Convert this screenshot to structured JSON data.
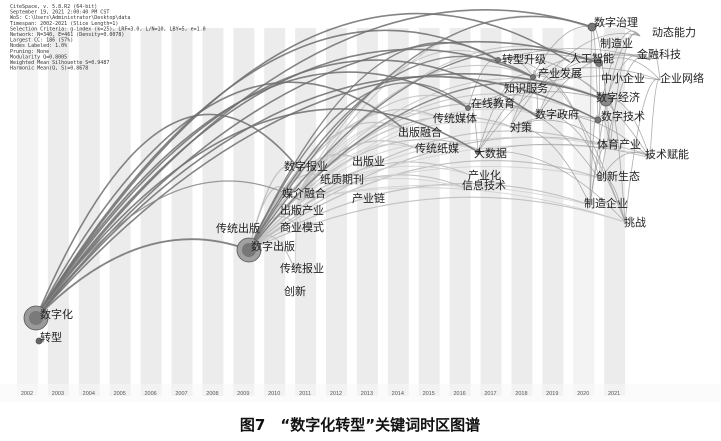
{
  "header_info": [
    "CiteSpace, v. 5.8.R2 (64-bit)",
    "September 19, 2021 2:00:40 PM CST",
    "WoS: C:\\Users\\Administrator\\Desktop\\data",
    "Timespan: 2002-2021 (Slice Length=1)",
    "Selection Criteria: g-index (k=25), LRF=3.0, L/N=10, LBY=5, e=1.0",
    "Network: N=340, E=461 (Density=0.0078)",
    "Largest CC: 186 (57%)",
    "Nodes Labeled: 1.0%",
    "Pruning: None",
    "Modularity Q=0.8005",
    "Weighted Mean Silhouette S=0.9487",
    "Harmonic Mean(Q, S)=0.8678"
  ],
  "years": [
    "2002",
    "2003",
    "2004",
    "2005",
    "2006",
    "2007",
    "2008",
    "2009",
    "2010",
    "2011",
    "2012",
    "2013",
    "2014",
    "2015",
    "2016",
    "2017",
    "2018",
    "2019",
    "2020",
    "2021"
  ],
  "keywords": [
    {
      "id": "k1",
      "text": "数字化"
    },
    {
      "id": "k2",
      "text": "转型"
    },
    {
      "id": "k3",
      "text": "传统出版"
    },
    {
      "id": "k4",
      "text": "数字出版"
    },
    {
      "id": "k5",
      "text": "传统报业"
    },
    {
      "id": "k6",
      "text": "创新"
    },
    {
      "id": "k7",
      "text": "出版产业"
    },
    {
      "id": "k8",
      "text": "商业模式"
    },
    {
      "id": "k9",
      "text": "媒介融合"
    },
    {
      "id": "k10",
      "text": "数字报业"
    },
    {
      "id": "k11",
      "text": "纸质期刊"
    },
    {
      "id": "k12",
      "text": "出版业"
    },
    {
      "id": "k13",
      "text": "产业链"
    },
    {
      "id": "k14",
      "text": "出版融合"
    },
    {
      "id": "k15",
      "text": "传统纸媒"
    },
    {
      "id": "k16",
      "text": "传统媒体"
    },
    {
      "id": "k17",
      "text": "大数据"
    },
    {
      "id": "k18",
      "text": "产业化"
    },
    {
      "id": "k19",
      "text": "信息技术"
    },
    {
      "id": "k20",
      "text": "在线教育"
    },
    {
      "id": "k21",
      "text": "对策"
    },
    {
      "id": "k22",
      "text": "转型升级"
    },
    {
      "id": "k23",
      "text": "知识服务"
    },
    {
      "id": "k24",
      "text": "产业发展"
    },
    {
      "id": "k25",
      "text": "数字政府"
    },
    {
      "id": "k26",
      "text": "人工智能"
    },
    {
      "id": "k27",
      "text": "数字治理"
    },
    {
      "id": "k28",
      "text": "制造业"
    },
    {
      "id": "k29",
      "text": "中小企业"
    },
    {
      "id": "k30",
      "text": "数字经济"
    },
    {
      "id": "k31",
      "text": "数字技术"
    },
    {
      "id": "k32",
      "text": "动态能力"
    },
    {
      "id": "k33",
      "text": "金融科技"
    },
    {
      "id": "k34",
      "text": "企业网络"
    },
    {
      "id": "k35",
      "text": "体育产业"
    },
    {
      "id": "k36",
      "text": "技术赋能"
    },
    {
      "id": "k37",
      "text": "创新生态"
    },
    {
      "id": "k38",
      "text": "制造企业"
    },
    {
      "id": "k39",
      "text": "挑战"
    }
  ],
  "caption": "图7　“数字化转型”关键词时区图谱"
}
